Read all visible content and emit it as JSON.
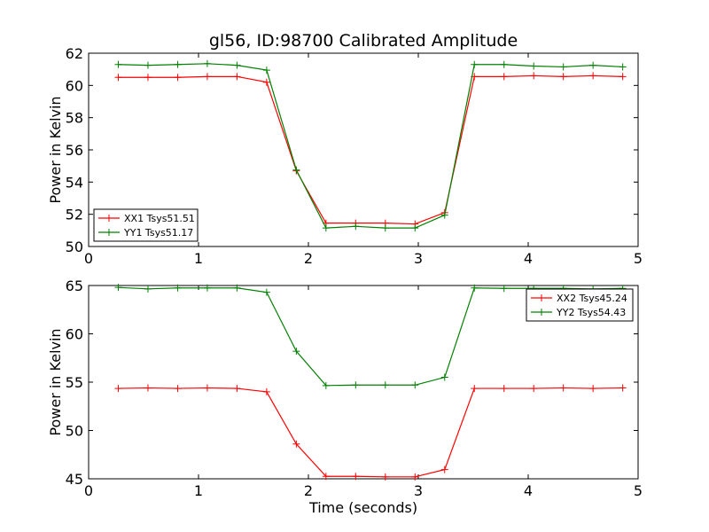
{
  "title": "gl56, ID:98700 Calibrated Amplitude",
  "chart_data": [
    {
      "type": "line",
      "title": "gl56, ID:98700 Calibrated Amplitude",
      "xlabel": "",
      "ylabel": "Power in Kelvin",
      "xlim": [
        0,
        5
      ],
      "ylim": [
        50,
        62
      ],
      "xticks": [
        "0",
        "1",
        "2",
        "3",
        "4",
        "5"
      ],
      "yticks": [
        "50",
        "52",
        "54",
        "56",
        "58",
        "60",
        "62"
      ],
      "legend_position": "lower-left",
      "grid": false,
      "x": [
        0.27,
        0.54,
        0.81,
        1.08,
        1.35,
        1.62,
        1.89,
        2.16,
        2.43,
        2.7,
        2.97,
        3.24,
        3.51,
        3.78,
        4.05,
        4.32,
        4.59,
        4.86
      ],
      "series": [
        {
          "name": "XX1 Tsys51.51",
          "color": "#ff0000",
          "values": [
            60.5,
            60.5,
            60.5,
            60.55,
            60.55,
            60.2,
            54.7,
            51.45,
            51.45,
            51.45,
            51.4,
            52.1,
            60.55,
            60.55,
            60.6,
            60.55,
            60.6,
            60.55
          ]
        },
        {
          "name": "YY1 Tsys51.17",
          "color": "#008000",
          "values": [
            61.3,
            61.25,
            61.3,
            61.35,
            61.25,
            60.95,
            54.75,
            51.15,
            51.25,
            51.15,
            51.15,
            51.95,
            61.3,
            61.3,
            61.2,
            61.15,
            61.25,
            61.15
          ]
        }
      ]
    },
    {
      "type": "line",
      "title": "",
      "xlabel": "Time (seconds)",
      "ylabel": "Power in Kelvin",
      "xlim": [
        0,
        5
      ],
      "ylim": [
        45,
        65
      ],
      "xticks": [
        "0",
        "1",
        "2",
        "3",
        "4",
        "5"
      ],
      "yticks": [
        "45",
        "50",
        "55",
        "60",
        "65"
      ],
      "legend_position": "upper-right",
      "grid": false,
      "x": [
        0.27,
        0.54,
        0.81,
        1.08,
        1.35,
        1.62,
        1.89,
        2.16,
        2.43,
        2.7,
        2.97,
        3.24,
        3.51,
        3.78,
        4.05,
        4.32,
        4.59,
        4.86
      ],
      "series": [
        {
          "name": "XX2 Tsys45.24",
          "color": "#ff0000",
          "values": [
            54.35,
            54.4,
            54.35,
            54.4,
            54.35,
            54.0,
            48.6,
            45.25,
            45.25,
            45.2,
            45.2,
            45.95,
            54.35,
            54.35,
            54.35,
            54.4,
            54.35,
            54.4
          ]
        },
        {
          "name": "YY2 Tsys54.43",
          "color": "#008000",
          "values": [
            64.8,
            64.65,
            64.75,
            64.75,
            64.75,
            64.3,
            58.2,
            54.65,
            54.7,
            54.7,
            54.7,
            55.5,
            64.75,
            64.7,
            64.7,
            64.7,
            64.65,
            64.7
          ]
        }
      ]
    }
  ]
}
